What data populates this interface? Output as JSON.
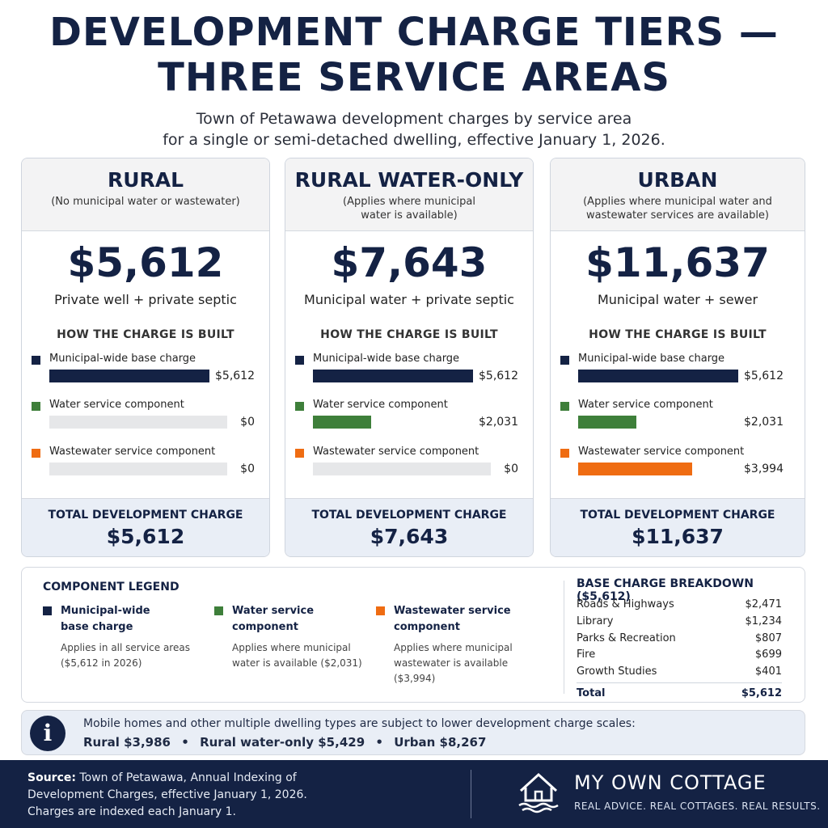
{
  "title_line1": "DEVELOPMENT CHARGE TIERS —",
  "title_line2": "THREE SERVICE AREAS",
  "subtitle_line1": "Town of Petawawa development charges by service area",
  "subtitle_line2": "for a single or semi-detached dwelling, effective January 1, 2026.",
  "colors": {
    "navy": "#142244",
    "water": "#3e7f3a",
    "wastewater": "#ef6c12",
    "track": "#e6e7e9"
  },
  "how_built_label": "HOW THE CHARGE IS BUILT",
  "total_label": "TOTAL DEVELOPMENT CHARGE",
  "component_labels": {
    "base": "Municipal-wide base charge",
    "water": "Water service component",
    "wastewater": "Wastewater service component"
  },
  "cards": [
    {
      "name": "RURAL",
      "note_line1": "(No municipal water or wastewater)",
      "note_line2": "",
      "amount": "$5,612",
      "description": "Private well + private septic",
      "base_value": "$5,612",
      "water_value": "$0",
      "wastewater_value": "$0",
      "base_amount": 5612,
      "water_amount": 0,
      "wastewater_amount": 0,
      "total": "$5,612"
    },
    {
      "name": "RURAL WATER-ONLY",
      "note_line1": "(Applies where municipal",
      "note_line2": "water is available)",
      "amount": "$7,643",
      "description": "Municipal water + private septic",
      "base_value": "$5,612",
      "water_value": "$2,031",
      "wastewater_value": "$0",
      "base_amount": 5612,
      "water_amount": 2031,
      "wastewater_amount": 0,
      "total": "$7,643"
    },
    {
      "name": "URBAN",
      "note_line1": "(Applies where municipal water and",
      "note_line2": "wastewater services are available)",
      "amount": "$11,637",
      "description": "Municipal water + sewer",
      "base_value": "$5,612",
      "water_value": "$2,031",
      "wastewater_value": "$3,994",
      "base_amount": 5612,
      "water_amount": 2031,
      "wastewater_amount": 3994,
      "total": "$11,637"
    }
  ],
  "legend": {
    "title": "COMPONENT LEGEND",
    "items": [
      {
        "name_line1": "Municipal-wide",
        "name_line2": "base charge",
        "sub_line1": "Applies in all service areas",
        "sub_line2": "($5,612 in 2026)"
      },
      {
        "name_line1": "Water service",
        "name_line2": "component",
        "sub_line1": "Applies where municipal",
        "sub_line2": "water is available ($2,031)"
      },
      {
        "name_line1": "Wastewater service",
        "name_line2": "component",
        "sub_line1": "Applies where municipal",
        "sub_line2": "wastewater is available ($3,994)"
      }
    ]
  },
  "breakdown": {
    "title": "BASE CHARGE BREAKDOWN ($5,612)",
    "rows": [
      {
        "label": "Roads & Highways",
        "value": "$2,471"
      },
      {
        "label": "Library",
        "value": "$1,234"
      },
      {
        "label": "Parks & Recreation",
        "value": "$807"
      },
      {
        "label": "Fire",
        "value": "$699"
      },
      {
        "label": "Growth Studies",
        "value": "$401"
      }
    ],
    "total_label": "Total",
    "total_value": "$5,612"
  },
  "info": {
    "line1": "Mobile homes and other multiple dwelling types are subject to lower development charge scales:",
    "rural": "Rural $3,986",
    "sep": "•",
    "water_only": "Rural water-only $5,429",
    "urban": "Urban $8,267"
  },
  "footer": {
    "source_label": "Source:",
    "source_text1": "Town of Petawawa, Annual Indexing of",
    "source_text2": "Development Charges, effective January 1, 2026.",
    "source_text3": "Charges are indexed each January 1.",
    "brand_name": "MY OWN COTTAGE",
    "brand_tag": "REAL ADVICE. REAL COTTAGES. REAL RESULTS."
  }
}
